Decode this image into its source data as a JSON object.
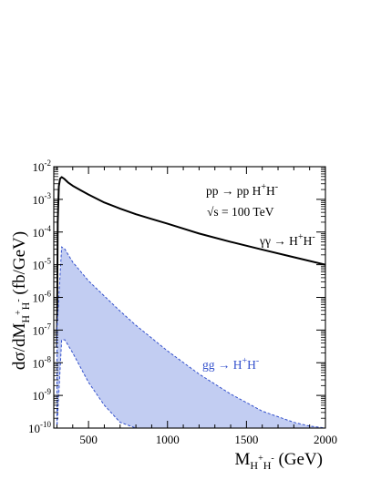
{
  "chart_data": {
    "type": "line",
    "title": "",
    "xlabel": {
      "base": "M",
      "subscript": "H",
      "sub_sup1": "+",
      "sub_mid": "H",
      "sub_sup2": "-",
      "unit": " (GeV)"
    },
    "ylabel": {
      "prefix": "dσ/dM",
      "subscript": "H",
      "sub_sup1": "+",
      "sub_mid": "H",
      "sub_sup2": "-",
      "unit": " (fb/GeV)"
    },
    "xlim": [
      280,
      2000
    ],
    "ylim": [
      1e-10,
      0.01
    ],
    "yscale": "log",
    "x_ticks": [
      {
        "value": 500,
        "label": "500"
      },
      {
        "value": 1000,
        "label": "1000"
      },
      {
        "value": 1500,
        "label": "1500"
      },
      {
        "value": 2000,
        "label": "2000"
      }
    ],
    "y_ticks": [
      {
        "value": 1e-10,
        "base": "10",
        "exp": "-10"
      },
      {
        "value": 1e-09,
        "base": "10",
        "exp": "-9"
      },
      {
        "value": 1e-08,
        "base": "10",
        "exp": "-8"
      },
      {
        "value": 1e-07,
        "base": "10",
        "exp": "-7"
      },
      {
        "value": 1e-06,
        "base": "10",
        "exp": "-6"
      },
      {
        "value": 1e-05,
        "base": "10",
        "exp": "-5"
      },
      {
        "value": 0.0001,
        "base": "10",
        "exp": "-4"
      },
      {
        "value": 0.001,
        "base": "10",
        "exp": "-3"
      },
      {
        "value": 0.01,
        "base": "10",
        "exp": "-2"
      }
    ],
    "annotations": {
      "process": {
        "text": "pp → pp H",
        "sup1": "+",
        "mid": "H",
        "sup2": "-"
      },
      "energy": {
        "text": "√s = 100 TeV"
      },
      "gamma": {
        "text": "γγ → H",
        "sup1": "+",
        "mid": "H",
        "sup2": "-"
      },
      "gg": {
        "text": "gg → H",
        "sup1": "+",
        "mid": "H",
        "sup2": "-"
      }
    },
    "series": [
      {
        "kind": "line",
        "color": "#000000",
        "x": [
          300,
          305,
          312,
          320,
          330,
          345,
          370,
          400,
          450,
          500,
          600,
          700,
          800,
          900,
          1000,
          1200,
          1400,
          1600,
          1800,
          2000
        ],
        "y": [
          3e-08,
          0.0002,
          0.0025,
          0.0043,
          0.0048,
          0.0043,
          0.0033,
          0.0026,
          0.0019,
          0.0014,
          0.0008,
          0.00052,
          0.00035,
          0.00025,
          0.00018,
          9e-05,
          5e-05,
          2.9e-05,
          1.7e-05,
          1e-05
        ]
      },
      {
        "kind": "band",
        "color": "#3350cc",
        "fill": "#c2cdf2",
        "x": [
          300,
          330,
          350,
          400,
          500,
          600,
          700,
          800,
          1000,
          1200,
          1400,
          1600,
          1800,
          1900,
          2000
        ],
        "upper": [
          1e-07,
          3.5e-05,
          3e-05,
          1.2e-05,
          3.2e-06,
          1.1e-06,
          3.8e-07,
          1.4e-07,
          2.3e-08,
          4.5e-09,
          1.1e-09,
          3.3e-10,
          1.5e-10,
          1.15e-10,
          1e-10
        ],
        "lower": [
          1e-10,
          5e-08,
          5e-08,
          2e-08,
          2.5e-09,
          5e-10,
          1.5e-10,
          1e-10,
          1e-10,
          1e-10,
          1e-10,
          1e-10,
          1e-10,
          1e-10,
          1e-10
        ]
      }
    ],
    "grid": false,
    "legend": "none"
  }
}
